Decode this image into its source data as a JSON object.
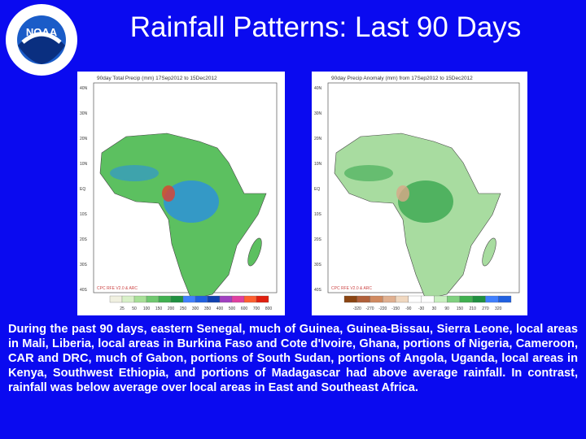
{
  "slide": {
    "title": "Rainfall Patterns: Last 90 Days",
    "logo_text": "NOAA",
    "maps": [
      {
        "title": "90day Total Precip (mm) 17Sep2012 to 15Dec2012",
        "lat_labels": [
          "40N",
          "30N",
          "20N",
          "10N",
          "EQ",
          "10S",
          "20S",
          "30S",
          "40S"
        ],
        "source": "CPC RFE V2.0 & ARC",
        "legend": [
          "25",
          "50",
          "100",
          "150",
          "200",
          "250",
          "300",
          "350",
          "400",
          "500",
          "600",
          "700",
          "800"
        ],
        "legend_colors": [
          "#f0f0e0",
          "#d8f0c8",
          "#a8e098",
          "#70c870",
          "#40b050",
          "#209040",
          "#4080ff",
          "#2060e0",
          "#1040b0",
          "#a040c0",
          "#e040a0",
          "#ff6030",
          "#e02010"
        ]
      },
      {
        "title": "90day Precip Anomaly (mm) from 17Sep2012 to 15Dec2012",
        "lat_labels": [
          "40N",
          "30N",
          "20N",
          "10N",
          "EQ",
          "10S",
          "20S",
          "30S",
          "40S"
        ],
        "source": "CPC RFE V2.0 & ARC",
        "legend": [
          "-320",
          "-270",
          "-220",
          "-150",
          "-90",
          "-30",
          "30",
          "90",
          "150",
          "210",
          "270",
          "320"
        ],
        "legend_colors": [
          "#8b4513",
          "#b0603a",
          "#d08a60",
          "#e0b090",
          "#f0d8c0",
          "#ffffff",
          "#ffffff",
          "#c8f0c0",
          "#80d080",
          "#40b050",
          "#209040",
          "#4080ff",
          "#2060e0"
        ]
      }
    ],
    "body": "During the past 90 days, eastern Senegal, much of Guinea, Guinea-Bissau, Sierra Leone, local areas in Mali, Liberia, local areas in Burkina Faso and Cote d'Ivoire, Ghana, portions of Nigeria, Cameroon, CAR and DRC, much of Gabon, portions of South Sudan, portions of Angola, Uganda, local areas in Kenya, Southwest Ethiopia, and portions of Madagascar had above average rainfall. In contrast, rainfall was below average over local areas in East and Southeast Africa."
  }
}
